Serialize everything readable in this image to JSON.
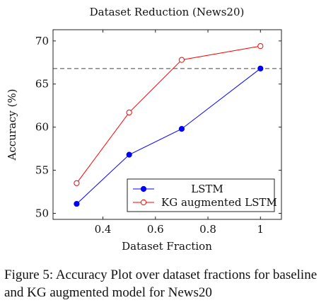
{
  "chart_data": {
    "type": "line",
    "title": "Dataset Reduction (News20)",
    "xlabel": "Dataset Fraction",
    "ylabel": "Accuracy (%)",
    "xlim": [
      0.21,
      1.08
    ],
    "ylim": [
      49.3,
      71.3
    ],
    "x_ticks": [
      0.4,
      0.6,
      0.8,
      1.0
    ],
    "x_tick_labels": [
      "0.4",
      "0.6",
      "0.8",
      "1"
    ],
    "y_ticks": [
      50,
      55,
      60,
      65,
      70
    ],
    "y_tick_labels": [
      "50",
      "55",
      "60",
      "65",
      "70"
    ],
    "reference_line": {
      "y": 66.8,
      "style": "dashed"
    },
    "legend_position": "bottom-right",
    "series": [
      {
        "name": "LSTM",
        "color": "#0000ff",
        "marker": "filled-circle",
        "x": [
          0.3,
          0.5,
          0.7,
          1.0
        ],
        "y": [
          51.1,
          56.8,
          59.8,
          66.8
        ]
      },
      {
        "name": "KG augmented LSTM",
        "color": "#ff0000",
        "marker": "open-circle",
        "x": [
          0.3,
          0.5,
          0.7,
          1.0
        ],
        "y": [
          53.5,
          61.7,
          67.8,
          69.4
        ]
      }
    ]
  },
  "caption": "Figure 5: Accuracy Plot over dataset fractions for baseline and KG augmented model for News20"
}
